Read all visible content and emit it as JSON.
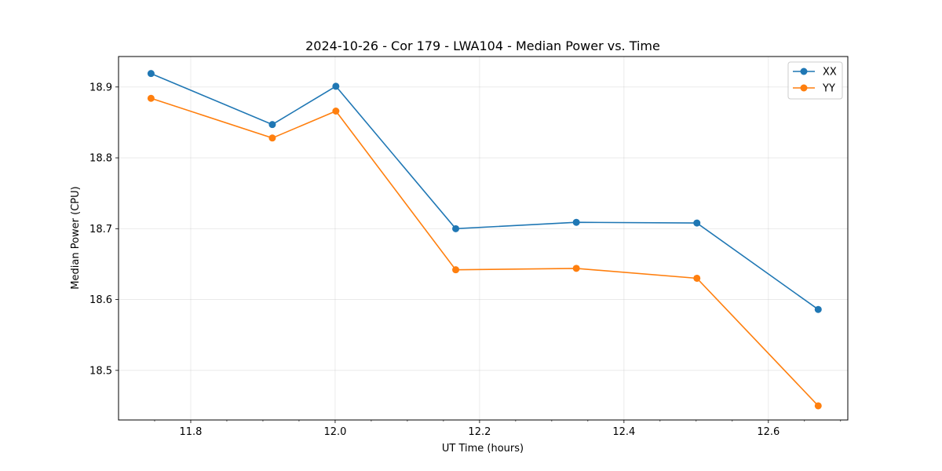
{
  "chart_data": {
    "type": "line",
    "title": "2024-10-26 - Cor 179 - LWA104 - Median Power vs. Time",
    "xlabel": "UT Time (hours)",
    "ylabel": "Median Power (CPU)",
    "xlim": [
      11.7,
      12.71
    ],
    "ylim": [
      18.43,
      18.943
    ],
    "xticks": [
      11.8,
      12.0,
      12.2,
      12.4,
      12.6
    ],
    "xtick_labels": [
      "11.8",
      "12.0",
      "12.2",
      "12.4",
      "12.6"
    ],
    "yticks": [
      18.5,
      18.6,
      18.7,
      18.8,
      18.9
    ],
    "ytick_labels": [
      "18.5",
      "18.6",
      "18.7",
      "18.8",
      "18.9"
    ],
    "grid": true,
    "legend_position": "top-right",
    "x": [
      11.745,
      11.913,
      12.001,
      12.167,
      12.334,
      12.501,
      12.669
    ],
    "series": [
      {
        "name": "XX",
        "color": "#1f77b4",
        "values": [
          18.919,
          18.847,
          18.901,
          18.7,
          18.709,
          18.708,
          18.586
        ]
      },
      {
        "name": "YY",
        "color": "#ff7f0e",
        "values": [
          18.884,
          18.828,
          18.866,
          18.642,
          18.644,
          18.63,
          18.45
        ]
      }
    ]
  }
}
